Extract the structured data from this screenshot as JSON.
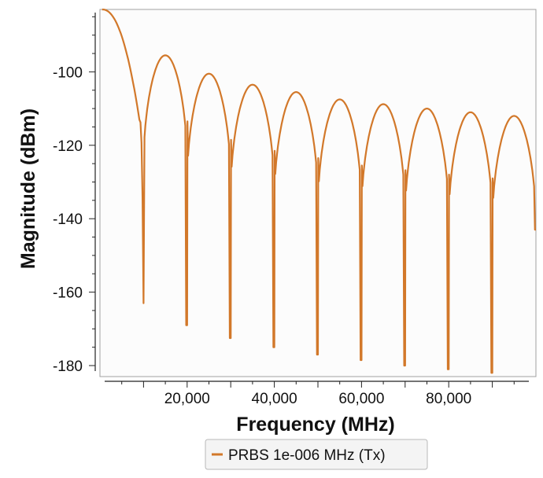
{
  "chart_data": {
    "type": "line",
    "title": "",
    "xlabel": "Frequency (MHz)",
    "ylabel": "Magnitude (dBm)",
    "xlim": [
      0,
      100000
    ],
    "ylim": [
      -183,
      -83
    ],
    "x_ticks": [
      20000,
      40000,
      60000,
      80000
    ],
    "x_tick_labels": [
      "20,000",
      "40,000",
      "60,000",
      "80,000"
    ],
    "y_ticks": [
      -100,
      -120,
      -140,
      -160,
      -180
    ],
    "y_tick_labels": [
      "-100",
      "-120",
      "-140",
      "-160",
      "-180"
    ],
    "grid": false,
    "legend_position": "bottom",
    "series": [
      {
        "name": "PRBS 1e-006 MHz (Tx)",
        "color": "#d2782a",
        "main_lobe": {
          "x_start": 500,
          "y_start": -83,
          "x_end": 10000,
          "null_depth": -163
        },
        "side_lobes": [
          {
            "x_start": 10000,
            "x_end": 20000,
            "peak": -95.5,
            "null_depth": -169
          },
          {
            "x_start": 20000,
            "x_end": 30000,
            "peak": -100.5,
            "null_depth": -172.5
          },
          {
            "x_start": 30000,
            "x_end": 40000,
            "peak": -103.5,
            "null_depth": -175
          },
          {
            "x_start": 40000,
            "x_end": 50000,
            "peak": -105.5,
            "null_depth": -177
          },
          {
            "x_start": 50000,
            "x_end": 60000,
            "peak": -107.5,
            "null_depth": -178.5
          },
          {
            "x_start": 60000,
            "x_end": 70000,
            "peak": -108.8,
            "null_depth": -180
          },
          {
            "x_start": 70000,
            "x_end": 80000,
            "peak": -110,
            "null_depth": -181
          },
          {
            "x_start": 80000,
            "x_end": 90000,
            "peak": -111,
            "null_depth": -182
          },
          {
            "x_start": 90000,
            "x_end": 100000,
            "peak": -112,
            "end_value": -143
          }
        ]
      }
    ]
  }
}
